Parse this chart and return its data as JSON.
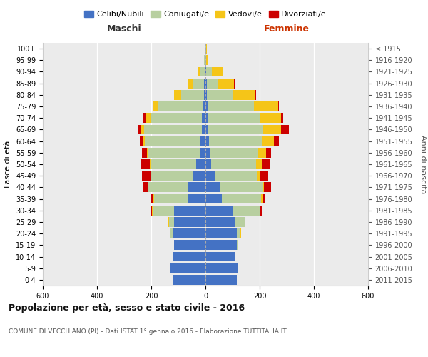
{
  "age_groups": [
    "0-4",
    "5-9",
    "10-14",
    "15-19",
    "20-24",
    "25-29",
    "30-34",
    "35-39",
    "40-44",
    "45-49",
    "50-54",
    "55-59",
    "60-64",
    "65-69",
    "70-74",
    "75-79",
    "80-84",
    "85-89",
    "90-94",
    "95-99",
    "100+"
  ],
  "birth_years": [
    "2011-2015",
    "2006-2010",
    "2001-2005",
    "1996-2000",
    "1991-1995",
    "1986-1990",
    "1981-1985",
    "1976-1980",
    "1971-1975",
    "1966-1970",
    "1961-1965",
    "1956-1960",
    "1951-1955",
    "1946-1950",
    "1941-1945",
    "1936-1940",
    "1931-1935",
    "1926-1930",
    "1921-1925",
    "1916-1920",
    "≤ 1915"
  ],
  "male": {
    "celibi": [
      120,
      130,
      120,
      115,
      120,
      115,
      115,
      65,
      65,
      45,
      35,
      22,
      18,
      12,
      12,
      8,
      5,
      4,
      2,
      1,
      1
    ],
    "coniugati": [
      0,
      1,
      1,
      2,
      10,
      20,
      80,
      125,
      145,
      155,
      165,
      190,
      205,
      215,
      190,
      165,
      85,
      40,
      18,
      3,
      1
    ],
    "vedovi": [
      0,
      0,
      0,
      0,
      1,
      1,
      2,
      2,
      2,
      3,
      4,
      4,
      5,
      10,
      18,
      18,
      25,
      18,
      8,
      2,
      0
    ],
    "divorziati": [
      0,
      0,
      0,
      0,
      1,
      2,
      5,
      10,
      18,
      32,
      32,
      18,
      14,
      12,
      8,
      5,
      2,
      2,
      0,
      0,
      0
    ]
  },
  "female": {
    "nubili": [
      115,
      120,
      110,
      115,
      115,
      110,
      100,
      60,
      55,
      35,
      22,
      15,
      12,
      10,
      10,
      8,
      5,
      5,
      3,
      1,
      1
    ],
    "coniugate": [
      0,
      1,
      1,
      4,
      15,
      35,
      100,
      145,
      155,
      155,
      165,
      180,
      195,
      200,
      190,
      170,
      95,
      40,
      20,
      2,
      1
    ],
    "vedove": [
      0,
      0,
      0,
      0,
      1,
      1,
      2,
      5,
      5,
      10,
      20,
      28,
      45,
      70,
      80,
      90,
      85,
      60,
      42,
      8,
      2
    ],
    "divorziate": [
      0,
      0,
      0,
      0,
      1,
      2,
      5,
      10,
      28,
      32,
      32,
      18,
      18,
      28,
      8,
      4,
      2,
      2,
      0,
      0,
      0
    ]
  },
  "colors": {
    "celibi": "#4472c4",
    "coniugati": "#b8cfa0",
    "vedovi": "#f5c518",
    "divorziati": "#cc0000"
  },
  "title": "Popolazione per età, sesso e stato civile - 2016",
  "subtitle": "COMUNE DI VECCHIANO (PI) - Dati ISTAT 1° gennaio 2016 - Elaborazione TUTTITALIA.IT",
  "xlabel_left": "Maschi",
  "xlabel_right": "Femmine",
  "ylabel_left": "Fasce di età",
  "ylabel_right": "Anni di nascita",
  "xlim": 600,
  "legend_labels": [
    "Celibi/Nubili",
    "Coniugati/e",
    "Vedovi/e",
    "Divorziati/e"
  ],
  "background_color": "#ffffff",
  "plot_bg_color": "#ebebeb"
}
